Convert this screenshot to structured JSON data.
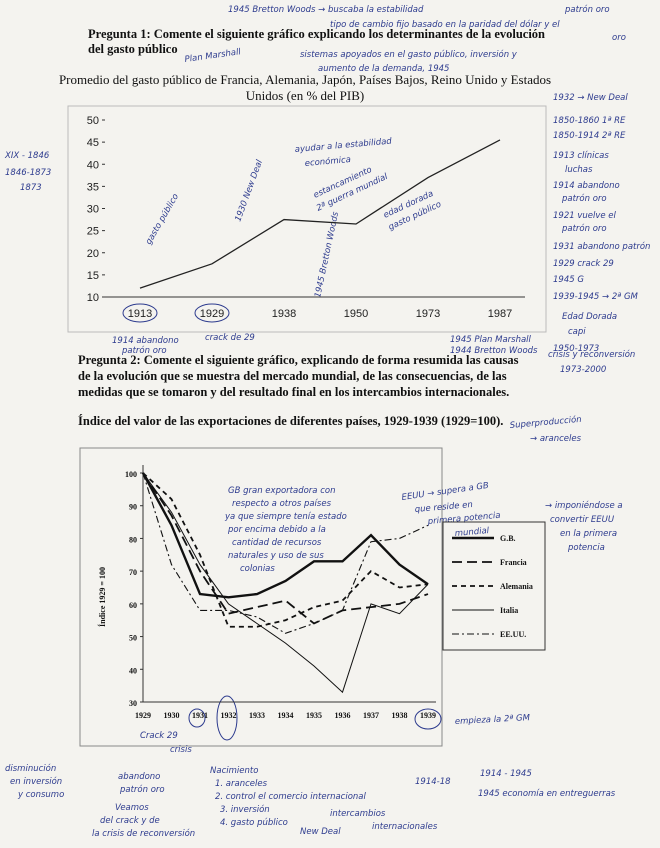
{
  "question_1": {
    "lines": [
      "Pregunta 1: Comente el siguiente gráfico explicando los determinantes de la evolución",
      "del gasto público"
    ]
  },
  "chart_data": [
    {
      "type": "line",
      "title": [
        "Promedio del gasto público de Francia, Alemania, Japón, Países Bajos, Reino Unido y Estados",
        "Unidos (en % del PIB)"
      ],
      "categories": [
        "1913",
        "1929",
        "1938",
        "1950",
        "1973",
        "1987"
      ],
      "values": [
        12,
        17.5,
        27.5,
        26.5,
        37,
        45.5
      ],
      "color": "#222222",
      "ylim": [
        10,
        50
      ],
      "yticks": [
        10,
        15,
        20,
        25,
        30,
        35,
        40,
        45,
        50
      ]
    },
    {
      "type": "line",
      "title": "Índice del valor de las exportaciones de diferentes países, 1929-1939 (1929=100).",
      "y_label": "Índice 1929 = 100",
      "categories": [
        "1929",
        "1930",
        "1931",
        "1932",
        "1933",
        "1934",
        "1935",
        "1936",
        "1937",
        "1938",
        "1939"
      ],
      "series": [
        {
          "name": "G.B.",
          "color": "#111111",
          "style": "thick",
          "values": [
            100,
            84,
            63,
            62,
            63,
            67,
            73,
            73,
            81,
            72,
            66
          ]
        },
        {
          "name": "Francia",
          "color": "#111111",
          "style": "long-dash",
          "values": [
            100,
            87,
            70,
            57,
            59,
            61,
            54,
            58,
            59,
            60,
            63
          ]
        },
        {
          "name": "Alemania",
          "color": "#111111",
          "style": "short-dash",
          "values": [
            100,
            92,
            75,
            53,
            53,
            55,
            59,
            61,
            70,
            65,
            66
          ]
        },
        {
          "name": "Italia",
          "color": "#111111",
          "style": "thin",
          "values": [
            100,
            88,
            72,
            60,
            54,
            48,
            41,
            33,
            60,
            57,
            66
          ]
        },
        {
          "name": "EE.UU.",
          "color": "#111111",
          "style": "dash-dot",
          "values": [
            100,
            72,
            58,
            58,
            56,
            51,
            54,
            58,
            79,
            80,
            84
          ]
        }
      ],
      "ylim": [
        30,
        100
      ],
      "yticks": [
        30,
        40,
        50,
        60,
        70,
        80,
        90,
        100
      ]
    }
  ],
  "question_2": {
    "lines": [
      "Pregunta 2: Comente el siguiente gráfico, explicando de forma resumida las causas",
      "de la evolución que se muestra del mercado mundial, de las consecuencias, de las",
      "medidas que se tomaron y del resultado final en los intercambios internacionales."
    ]
  },
  "notes": [
    "1945 Bretton Woods → buscaba la estabilidad",
    "patrón oro",
    "tipo de cambio fijo basado en la paridad del dólar y el",
    "oro",
    "Plan Marshall",
    "sistemas apoyados en el gasto público, inversión y",
    "aumento de la demanda, 1945",
    "XIX - 1846",
    "1846-1873",
    "1873",
    "1932 → New Deal",
    "1850-1860 1ª RE",
    "1850-1914 2ª RE",
    "1913 clínicas",
    "luchas",
    "1914 abandono",
    "patrón oro",
    "1921 vuelve el",
    "patrón oro",
    "1931 abandono patrón",
    "1929 crack 29",
    "1945 G",
    "1939-1945 → 2ª GM",
    "Edad Dorada",
    "capi",
    "1950-1973",
    "crisis y reconversión",
    "1973-2000",
    "gasto público",
    "ayudar a la estabilidad",
    "económica",
    "1930 New Deal",
    "estancamiento",
    "2ª guerra mundial",
    "1945 Bretton Woods",
    "edad dorada",
    "gasto público",
    "1914 abandono",
    "patrón oro",
    "crack de 29",
    "1945 Plan Marshall",
    "1944 Bretton Woods",
    "Superproducción",
    "→ aranceles",
    "GB gran exportadora con",
    "respecto a otros países",
    "ya que siempre tenía estado",
    "por encima debido a la",
    "cantidad de recursos",
    "naturales y uso de sus",
    "colonias",
    "EEUU → supera a GB",
    "que reside en",
    "primera potencia",
    "mundial",
    "→ imponiéndose a",
    "convertir EEUU",
    "en la primera",
    "potencia",
    "Crack 29",
    "empieza la 2ª GM",
    "disminución",
    "en inversión",
    "y consumo",
    "abandono",
    "patrón oro",
    "crisis",
    "Nacimiento",
    "1. aranceles",
    "2. control el comercio internacional",
    "3. inversión",
    "4. gasto público",
    "Veamos",
    "del crack y de",
    "la crisis de reconversión",
    "1914 - 1945",
    "1914-18",
    "1945 economía en entreguerras",
    "intercambios",
    "internacionales",
    "New Deal"
  ]
}
